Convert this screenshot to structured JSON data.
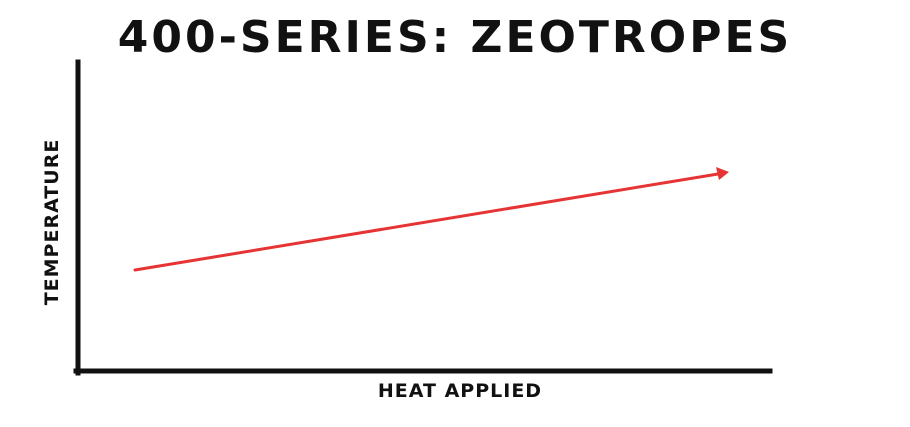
{
  "title": "400-SERIES: ZEOTROPES",
  "x_axis_label": "HEAT APPLIED",
  "y_axis_label": "TEMPERATURE",
  "colors": {
    "axes": "#111111",
    "arrow": "#e63333",
    "text": "#111111",
    "background": "#ffffff"
  },
  "arrow": {
    "direction": "rising",
    "icon": "arrowhead-right-icon"
  }
}
